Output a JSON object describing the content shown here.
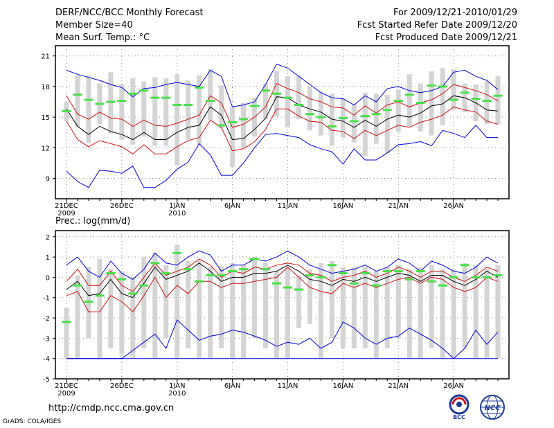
{
  "header": {
    "title": "DERF/NCC/BCC Monthly Forecast",
    "member_size": "Member Size=40",
    "variable": "Mean Surf. Temp.: °C",
    "period": "For 2009/12/21-2010/01/29",
    "started": "Fcst Started Refer Date 2009/12/20",
    "produced": "Fcst Produced Date 2009/12/21"
  },
  "colors": {
    "box": "#d4d4d4",
    "observed": "#44e244",
    "mean": "#000000",
    "spread": "#cc1111",
    "extreme": "#0000dd"
  },
  "chart_data": [
    {
      "type": "line",
      "name": "temperature",
      "title": "Mean Surf. Temp.: °C",
      "ylim": [
        7,
        22
      ],
      "yticks": [
        9,
        12,
        15,
        18,
        21
      ],
      "xlim": [
        0,
        41
      ],
      "x": [
        1,
        2,
        3,
        4,
        5,
        6,
        7,
        8,
        9,
        10,
        11,
        12,
        13,
        14,
        15,
        16,
        17,
        18,
        19,
        20,
        21,
        22,
        23,
        24,
        25,
        26,
        27,
        28,
        29,
        30,
        31,
        32,
        33,
        34,
        35,
        36,
        37,
        38,
        39,
        40
      ],
      "xtick_positions": [
        1,
        6,
        11,
        16,
        21,
        26,
        31,
        36
      ],
      "xtick_labels": [
        "21DEC",
        "26DEC",
        "1JAN",
        "6JAN",
        "11JAN",
        "16JAN",
        "21JAN",
        "26JAN"
      ],
      "xtick_years": {
        "21DEC": "2009",
        "1JAN": "2010"
      },
      "series": [
        {
          "name": "max",
          "role": "extreme",
          "values": [
            19.6,
            19.2,
            18.9,
            18.6,
            18.2,
            17.9,
            17.0,
            17.8,
            17.9,
            18.2,
            18.4,
            18.2,
            18.0,
            19.6,
            19.0,
            16.0,
            16.2,
            16.5,
            18.2,
            20.2,
            19.8,
            19.0,
            18.2,
            17.4,
            16.9,
            16.8,
            16.2,
            17.1,
            16.5,
            17.8,
            18.0,
            17.6,
            17.4,
            17.6,
            18.0,
            19.4,
            19.6,
            19.0,
            18.6,
            17.7
          ]
        },
        {
          "name": "upper",
          "role": "spread",
          "values": [
            17.1,
            15.3,
            14.8,
            15.5,
            14.9,
            14.8,
            14.1,
            14.7,
            14.2,
            14.1,
            14.4,
            14.8,
            15.2,
            17.1,
            16.4,
            14.0,
            14.3,
            15.0,
            16.0,
            18.3,
            17.8,
            17.4,
            16.8,
            16.5,
            16.0,
            15.9,
            15.2,
            16.1,
            15.4,
            16.2,
            16.5,
            16.0,
            16.4,
            16.7,
            17.3,
            18.2,
            17.9,
            17.6,
            17.2,
            16.6
          ]
        },
        {
          "name": "mean",
          "role": "mean",
          "values": [
            15.8,
            14.1,
            13.3,
            14.1,
            13.6,
            13.3,
            12.8,
            13.5,
            12.8,
            12.8,
            13.5,
            14.0,
            14.2,
            16.0,
            15.2,
            12.8,
            12.9,
            13.8,
            14.9,
            17.0,
            16.9,
            16.2,
            15.8,
            15.5,
            14.8,
            14.6,
            14.0,
            14.7,
            14.1,
            14.8,
            15.2,
            15.0,
            15.4,
            16.1,
            16.3,
            17.1,
            16.9,
            16.4,
            15.7,
            15.6
          ]
        },
        {
          "name": "lower",
          "role": "spread",
          "values": [
            14.6,
            12.8,
            12.1,
            12.7,
            12.4,
            12.1,
            11.4,
            12.3,
            11.4,
            11.4,
            12.1,
            12.7,
            13.0,
            14.7,
            14.0,
            11.7,
            11.9,
            12.6,
            13.8,
            15.8,
            15.8,
            15.1,
            14.6,
            14.5,
            13.7,
            13.6,
            12.9,
            13.7,
            13.2,
            13.7,
            14.2,
            14.0,
            14.5,
            14.8,
            15.2,
            16.0,
            15.7,
            15.5,
            14.6,
            14.3
          ]
        },
        {
          "name": "min",
          "role": "extreme",
          "values": [
            9.7,
            8.7,
            8.1,
            9.8,
            9.7,
            9.5,
            10.2,
            8.1,
            8.1,
            8.8,
            9.9,
            10.6,
            12.4,
            11.3,
            9.3,
            9.3,
            10.5,
            12.0,
            13.3,
            13.4,
            13.2,
            13.0,
            12.3,
            11.9,
            11.6,
            10.4,
            11.9,
            10.8,
            10.8,
            11.5,
            12.3,
            12.4,
            12.6,
            12.2,
            13.7,
            13.4,
            13.0,
            14.2,
            13.0,
            13.0
          ]
        },
        {
          "name": "observed",
          "role": "observed",
          "values": [
            15.6,
            17.2,
            16.7,
            16.3,
            16.5,
            16.6,
            17.3,
            17.6,
            16.9,
            16.9,
            16.2,
            16.2,
            17.9,
            16.6,
            14.2,
            14.5,
            14.8,
            16.1,
            17.6,
            17.3,
            16.9,
            16.2,
            15.3,
            15.0,
            14.1,
            14.9,
            14.6,
            15.1,
            15.3,
            15.7,
            16.6,
            17.2,
            16.4,
            18.1,
            18.0,
            16.7,
            17.4,
            16.8,
            16.6,
            17.1
          ]
        },
        {
          "name": "box_top",
          "role": "box",
          "values": [
            16.5,
            19.1,
            19.1,
            18.3,
            19.4,
            18.2,
            18.8,
            18.5,
            18.9,
            18.8,
            19.2,
            18.6,
            19.1,
            19.7,
            18.1,
            16.0,
            16.4,
            16.9,
            18.3,
            19.5,
            19.0,
            19.0,
            18.0,
            17.5,
            17.3,
            16.8,
            16.3,
            17.4,
            17.3,
            17.2,
            17.7,
            19.2,
            18.3,
            19.5,
            19.8,
            19.7,
            18.3,
            18.2,
            18.5,
            19.0
          ]
        },
        {
          "name": "box_bottom",
          "role": "box",
          "values": [
            14.6,
            14.0,
            12.5,
            14.3,
            13.4,
            12.8,
            12.3,
            13.1,
            12.2,
            12.2,
            10.3,
            12.8,
            12.3,
            14.7,
            13.9,
            10.1,
            12.0,
            13.1,
            14.8,
            15.1,
            14.0,
            14.8,
            13.7,
            13.2,
            12.2,
            13.0,
            12.5,
            11.2,
            12.4,
            11.5,
            13.6,
            14.0,
            13.6,
            13.2,
            14.2,
            15.7,
            15.5,
            14.6,
            14.3,
            14.3
          ]
        }
      ]
    },
    {
      "type": "line",
      "name": "precipitation",
      "title": "Prec.: log(mm/d)",
      "ylim": [
        -5,
        2.3
      ],
      "yticks": [
        -5,
        -4,
        -3,
        -2,
        -1,
        0,
        1,
        2
      ],
      "xlim": [
        0,
        41
      ],
      "x": [
        1,
        2,
        3,
        4,
        5,
        6,
        7,
        8,
        9,
        10,
        11,
        12,
        13,
        14,
        15,
        16,
        17,
        18,
        19,
        20,
        21,
        22,
        23,
        24,
        25,
        26,
        27,
        28,
        29,
        30,
        31,
        32,
        33,
        34,
        35,
        36,
        37,
        38,
        39,
        40
      ],
      "xtick_positions": [
        1,
        6,
        11,
        16,
        21,
        26,
        31,
        36
      ],
      "xtick_labels": [
        "21DEC",
        "26DEC",
        "1JAN",
        "6JAN",
        "11JAN",
        "16JAN",
        "21JAN",
        "26JAN"
      ],
      "xtick_years": {
        "21DEC": "2009",
        "1JAN": "2010"
      },
      "series": [
        {
          "name": "max",
          "role": "extreme",
          "values": [
            0.6,
            1.0,
            0.3,
            0.0,
            0.8,
            0.2,
            -0.1,
            0.4,
            1.2,
            0.7,
            0.6,
            1.0,
            1.3,
            1.1,
            0.3,
            0.6,
            0.6,
            0.9,
            0.8,
            1.0,
            1.3,
            1.0,
            0.6,
            0.4,
            0.2,
            0.3,
            0.4,
            0.6,
            0.3,
            0.5,
            0.9,
            0.7,
            0.3,
            0.8,
            0.6,
            0.3,
            0.2,
            0.5,
            1.0,
            0.7
          ]
        },
        {
          "name": "upper",
          "role": "spread",
          "values": [
            -0.2,
            0.4,
            -0.4,
            -0.4,
            0.3,
            -0.4,
            -0.7,
            0.0,
            0.7,
            0.1,
            0.3,
            0.5,
            0.9,
            0.6,
            0.0,
            0.3,
            0.2,
            0.5,
            0.4,
            0.6,
            0.7,
            0.6,
            0.2,
            0.1,
            -0.2,
            0.0,
            0.1,
            0.3,
            0.0,
            0.2,
            0.5,
            0.3,
            0.0,
            0.3,
            0.3,
            0.0,
            -0.2,
            0.1,
            0.5,
            0.3
          ]
        },
        {
          "name": "mean",
          "role": "mean",
          "values": [
            -0.6,
            -0.2,
            -0.9,
            -0.8,
            -0.1,
            -0.8,
            -1.0,
            -0.3,
            0.5,
            -0.1,
            0.1,
            0.3,
            0.7,
            0.3,
            -0.2,
            0.0,
            0.0,
            0.2,
            0.2,
            0.3,
            0.6,
            0.3,
            -0.1,
            -0.2,
            -0.4,
            -0.1,
            -0.2,
            0.0,
            -0.2,
            0.0,
            0.2,
            0.1,
            -0.2,
            0.1,
            0.1,
            -0.2,
            -0.4,
            -0.1,
            0.3,
            0.0
          ]
        },
        {
          "name": "lower",
          "role": "spread",
          "values": [
            -0.9,
            -0.7,
            -1.7,
            -1.7,
            -0.9,
            -1.2,
            -1.7,
            -0.9,
            0.0,
            -1.0,
            -0.4,
            -0.8,
            -0.2,
            -0.2,
            -0.5,
            -0.3,
            -0.3,
            -0.2,
            -0.1,
            0.0,
            0.5,
            0.0,
            -0.5,
            -0.7,
            -0.8,
            -0.3,
            -0.5,
            -0.3,
            -0.5,
            -0.3,
            -0.1,
            0.0,
            -0.3,
            0.0,
            -0.1,
            -0.5,
            -0.7,
            -0.5,
            0.0,
            -0.2
          ]
        },
        {
          "name": "min",
          "role": "extreme",
          "values": [
            -4.0,
            -4.0,
            -4.0,
            -4.0,
            -4.0,
            -4.0,
            -3.6,
            -3.2,
            -2.8,
            -3.5,
            -2.1,
            -2.6,
            -3.1,
            -2.9,
            -2.8,
            -2.6,
            -2.7,
            -2.9,
            -3.1,
            -3.4,
            -3.2,
            -3.3,
            -3.0,
            -3.5,
            -3.2,
            -2.2,
            -2.5,
            -3.0,
            -3.3,
            -3.0,
            -2.9,
            -2.5,
            -2.8,
            -3.1,
            -3.5,
            -4.0,
            -3.5,
            -2.6,
            -3.3,
            -2.7
          ]
        },
        {
          "name": "floor",
          "role": "extreme",
          "values": [
            -4.0,
            -4.0,
            -4.0,
            -4.0,
            -4.0,
            -4.0,
            -4.0,
            -4.0,
            -4.0,
            -4.0,
            -4.0,
            -4.0,
            -4.0,
            -4.0,
            -4.0,
            -4.0,
            -4.0,
            -4.0,
            -4.0,
            -4.0,
            -4.0,
            -4.0,
            -4.0,
            -4.0,
            -4.0,
            -4.0,
            -4.0,
            -4.0,
            -4.0,
            -4.0,
            -4.0,
            -4.0,
            -4.0,
            -4.0,
            -4.0,
            -4.0,
            -4.0,
            -4.0,
            -4.0,
            -4.0
          ]
        },
        {
          "name": "observed",
          "role": "observed",
          "values": [
            -2.2,
            -0.4,
            -1.2,
            -0.9,
            0.2,
            -0.1,
            -0.8,
            -0.4,
            0.7,
            0.2,
            1.2,
            0.4,
            -0.2,
            0.1,
            0.1,
            0.3,
            0.4,
            0.9,
            0.4,
            -0.3,
            -0.5,
            -0.6,
            0.1,
            0.0,
            0.6,
            0.2,
            -0.3,
            0.2,
            -0.4,
            0.3,
            0.3,
            -0.1,
            0.3,
            -0.2,
            -0.4,
            0.0,
            0.6,
            0.0,
            0.0,
            0.1
          ]
        },
        {
          "name": "box_top",
          "role": "box",
          "values": [
            -1.5,
            0.1,
            0.5,
            0.9,
            0.4,
            0.3,
            0.0,
            1.0,
            1.2,
            0.6,
            1.6,
            0.8,
            0.8,
            0.5,
            0.5,
            0.7,
            0.6,
            1.0,
            0.7,
            0.3,
            0.5,
            0.1,
            0.4,
            0.7,
            0.8,
            0.5,
            0.5,
            0.5,
            0.3,
            0.5,
            0.6,
            0.4,
            0.5,
            0.6,
            0.4,
            0.4,
            0.7,
            0.6,
            0.4,
            0.6
          ]
        },
        {
          "name": "box_bottom",
          "role": "box",
          "values": [
            -4.0,
            -4.0,
            -3.0,
            -4.0,
            -3.5,
            -3.8,
            -4.0,
            -3.5,
            -4.0,
            -3.0,
            -4.0,
            -3.5,
            -4.0,
            -4.0,
            -3.5,
            -4.0,
            -4.0,
            -3.0,
            -3.5,
            -4.0,
            -4.0,
            -2.5,
            -2.3,
            -4.0,
            -3.0,
            -3.5,
            -3.5,
            -3.5,
            -4.0,
            -3.5,
            -3.0,
            -4.0,
            -4.0,
            -3.5,
            -4.0,
            -4.0,
            -3.5,
            -4.0,
            -4.0,
            -4.0
          ]
        }
      ]
    }
  ],
  "footer": {
    "url": "http://cmdp.ncc.cma.gov.cn",
    "credit": "GrADS: COLA/IGES",
    "logo_bcc": "BCC",
    "logo_ncc": "NCC"
  }
}
